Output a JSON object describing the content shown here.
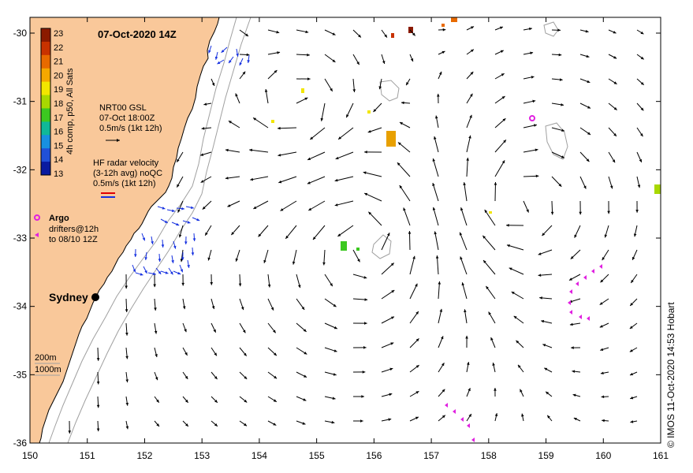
{
  "title": "07-Oct-2020 14Z",
  "axes": {
    "lon_ticks": [
      "150",
      "151",
      "152",
      "153",
      "154",
      "155",
      "156",
      "157",
      "158",
      "159",
      "160",
      "161"
    ],
    "lat_ticks": [
      "-30",
      "-31",
      "-32",
      "-33",
      "-34",
      "-35",
      "-36"
    ]
  },
  "colorbar": {
    "label": "4h comp, p50, All Sats",
    "ticks": [
      "23",
      "22",
      "21",
      "20",
      "19",
      "18",
      "17",
      "16",
      "15",
      "14",
      "13"
    ],
    "colors": [
      "#8b1a00",
      "#c83200",
      "#e86a00",
      "#f5a800",
      "#f2e600",
      "#a8d800",
      "#3cc820",
      "#10b898",
      "#1890e0",
      "#2050d8",
      "#0a1aa0"
    ]
  },
  "legend": {
    "gsl_label": "NRT00 GSL",
    "gsl_time": "07-Oct 18:00Z",
    "gsl_scale": "0.5m/s (1kt 12h)",
    "hf_label": "HF radar velocity",
    "hf_sub": "(3-12h avg) noQC",
    "hf_scale": "0.5m/s (1kt 12h)",
    "argo_label": "Argo",
    "drifter_label": "drifters@12h",
    "drifter_sub": "to 08/10 12Z"
  },
  "places": {
    "city": "Sydney"
  },
  "depth_legend": {
    "c200": "200m",
    "c1000": "1000m"
  },
  "credit": "© IMOS 11-Oct-2020 14:53 Hobart",
  "colors": {
    "land": "#f9c89a",
    "gsl_arrow": "#000000",
    "hf_arrow": "#1530e0",
    "argo": "#e020e0",
    "drifter": "#e020e0"
  }
}
